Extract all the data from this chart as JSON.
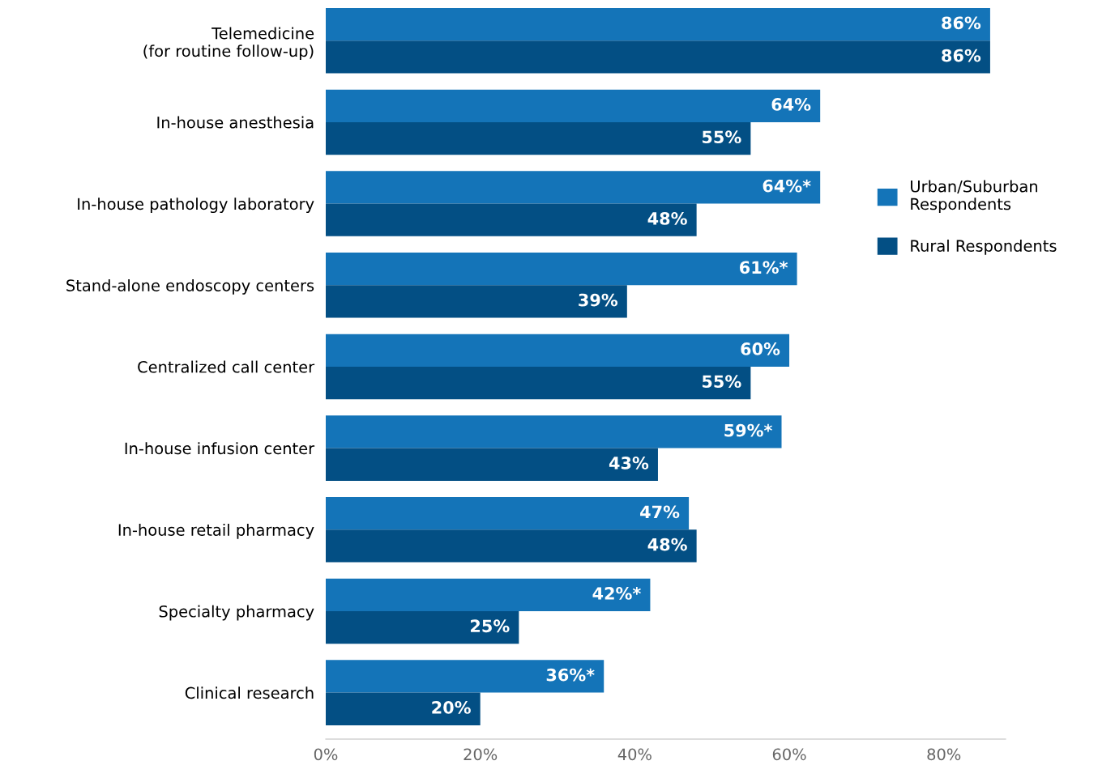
{
  "chart_data": {
    "type": "bar",
    "orientation": "horizontal",
    "categories": [
      "Telemedicine\n(for routine follow-up)",
      "In-house anesthesia",
      "In-house pathology laboratory",
      "Stand-alone endoscopy centers",
      "Centralized call center",
      "In-house infusion center",
      "In-house retail pharmacy",
      "Specialty pharmacy",
      "Clinical research"
    ],
    "series": [
      {
        "name": "Urban/Suburban\nRespondents",
        "color": "#1474b8",
        "values": [
          86,
          64,
          64,
          61,
          60,
          59,
          47,
          42,
          36
        ],
        "value_labels": [
          "86%",
          "64%",
          "64%*",
          "61%*",
          "60%",
          "59%*",
          "47%",
          "42%*",
          "36%*"
        ]
      },
      {
        "name": "Rural Respondents",
        "color": "#034f84",
        "values": [
          86,
          55,
          48,
          39,
          55,
          43,
          48,
          25,
          20
        ],
        "value_labels": [
          "86%",
          "55%",
          "48%",
          "39%",
          "55%",
          "43%",
          "48%",
          "25%",
          "20%"
        ]
      }
    ],
    "xlim": [
      0,
      88
    ],
    "xticks": [
      {
        "value": 0,
        "label": "0%"
      },
      {
        "value": 20,
        "label": "20%"
      },
      {
        "value": 40,
        "label": "40%"
      },
      {
        "value": 60,
        "label": "60%"
      },
      {
        "value": 80,
        "label": "80%"
      }
    ],
    "grid": false,
    "legend": "right"
  }
}
